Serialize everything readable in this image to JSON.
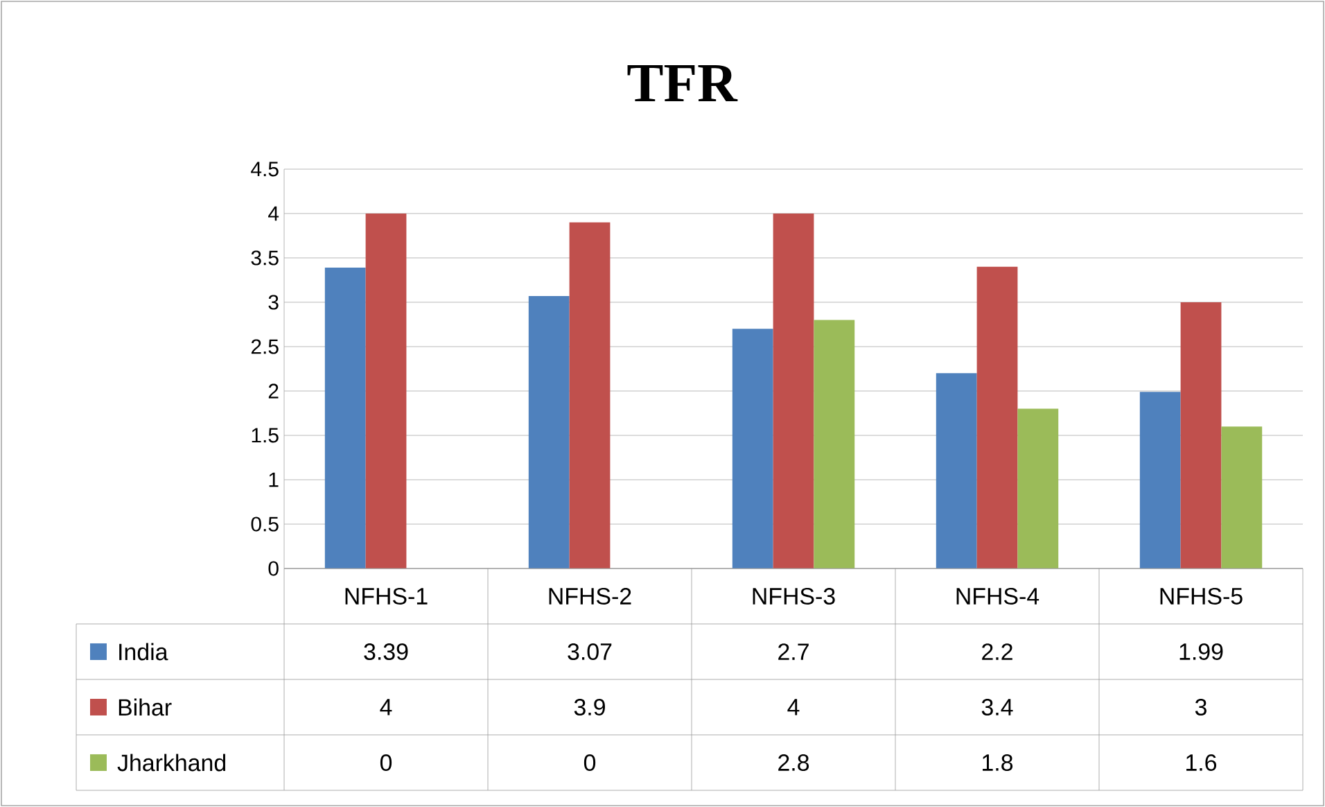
{
  "chart_data": {
    "type": "bar",
    "title": "TFR",
    "categories": [
      "NFHS-1",
      "NFHS-2",
      "NFHS-3",
      "NFHS-4",
      "NFHS-5"
    ],
    "series": [
      {
        "name": "India",
        "color": "#4f81bd",
        "values": [
          3.39,
          3.07,
          2.7,
          2.2,
          1.99
        ]
      },
      {
        "name": "Bihar",
        "color": "#c0504d",
        "values": [
          4,
          3.9,
          4,
          3.4,
          3
        ]
      },
      {
        "name": "Jharkhand",
        "color": "#9bbb59",
        "values": [
          0,
          0,
          2.8,
          1.8,
          1.6
        ]
      }
    ],
    "ylim": [
      0,
      4.5
    ],
    "yticks": [
      0,
      0.5,
      1,
      1.5,
      2,
      2.5,
      3,
      3.5,
      4,
      4.5
    ],
    "grid": "y",
    "legend": "bottom",
    "data_labels": true
  }
}
